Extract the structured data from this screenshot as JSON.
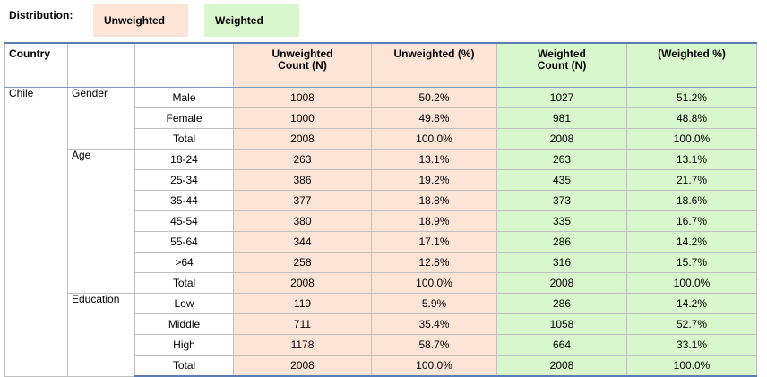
{
  "legend": {
    "label": "Distribution:",
    "unweighted": "Unweighted",
    "weighted": "Weighted"
  },
  "table": {
    "headers": {
      "country": "Country",
      "unw_count_line1": "Unweighted",
      "unw_count_line2": "Count (N)",
      "unw_pct": "Unweighted (%)",
      "w_count_line1": "Weighted",
      "w_count_line2": "Count (N)",
      "w_pct": "(Weighted %)"
    },
    "country": "Chile",
    "groups": [
      {
        "name": "Gender",
        "rows": [
          {
            "category": "Male",
            "unw_n": "1008",
            "unw_pct": "50.2%",
            "w_n": "1027",
            "w_pct": "51.2%"
          },
          {
            "category": "Female",
            "unw_n": "1000",
            "unw_pct": "49.8%",
            "w_n": "981",
            "w_pct": "48.8%"
          },
          {
            "category": "Total",
            "unw_n": "2008",
            "unw_pct": "100.0%",
            "w_n": "2008",
            "w_pct": "100.0%"
          }
        ]
      },
      {
        "name": "Age",
        "rows": [
          {
            "category": "18-24",
            "unw_n": "263",
            "unw_pct": "13.1%",
            "w_n": "263",
            "w_pct": "13.1%"
          },
          {
            "category": "25-34",
            "unw_n": "386",
            "unw_pct": "19.2%",
            "w_n": "435",
            "w_pct": "21.7%"
          },
          {
            "category": "35-44",
            "unw_n": "377",
            "unw_pct": "18.8%",
            "w_n": "373",
            "w_pct": "18.6%"
          },
          {
            "category": "45-54",
            "unw_n": "380",
            "unw_pct": "18.9%",
            "w_n": "335",
            "w_pct": "16.7%"
          },
          {
            "category": "55-64",
            "unw_n": "344",
            "unw_pct": "17.1%",
            "w_n": "286",
            "w_pct": "14.2%"
          },
          {
            "category": ">64",
            "unw_n": "258",
            "unw_pct": "12.8%",
            "w_n": "316",
            "w_pct": "15.7%"
          },
          {
            "category": "Total",
            "unw_n": "2008",
            "unw_pct": "100.0%",
            "w_n": "2008",
            "w_pct": "100.0%"
          }
        ]
      },
      {
        "name": "Education",
        "rows": [
          {
            "category": "Low",
            "unw_n": "119",
            "unw_pct": "5.9%",
            "w_n": "286",
            "w_pct": "14.2%"
          },
          {
            "category": "Middle",
            "unw_n": "711",
            "unw_pct": "35.4%",
            "w_n": "1058",
            "w_pct": "52.7%"
          },
          {
            "category": "High",
            "unw_n": "1178",
            "unw_pct": "58.7%",
            "w_n": "664",
            "w_pct": "33.1%"
          },
          {
            "category": "Total",
            "unw_n": "2008",
            "unw_pct": "100.0%",
            "w_n": "2008",
            "w_pct": "100.0%"
          }
        ]
      }
    ]
  },
  "colors": {
    "unweighted_fill": "#fce4d6",
    "weighted_fill": "#d9f7cc",
    "rule": "#5b7db3"
  }
}
